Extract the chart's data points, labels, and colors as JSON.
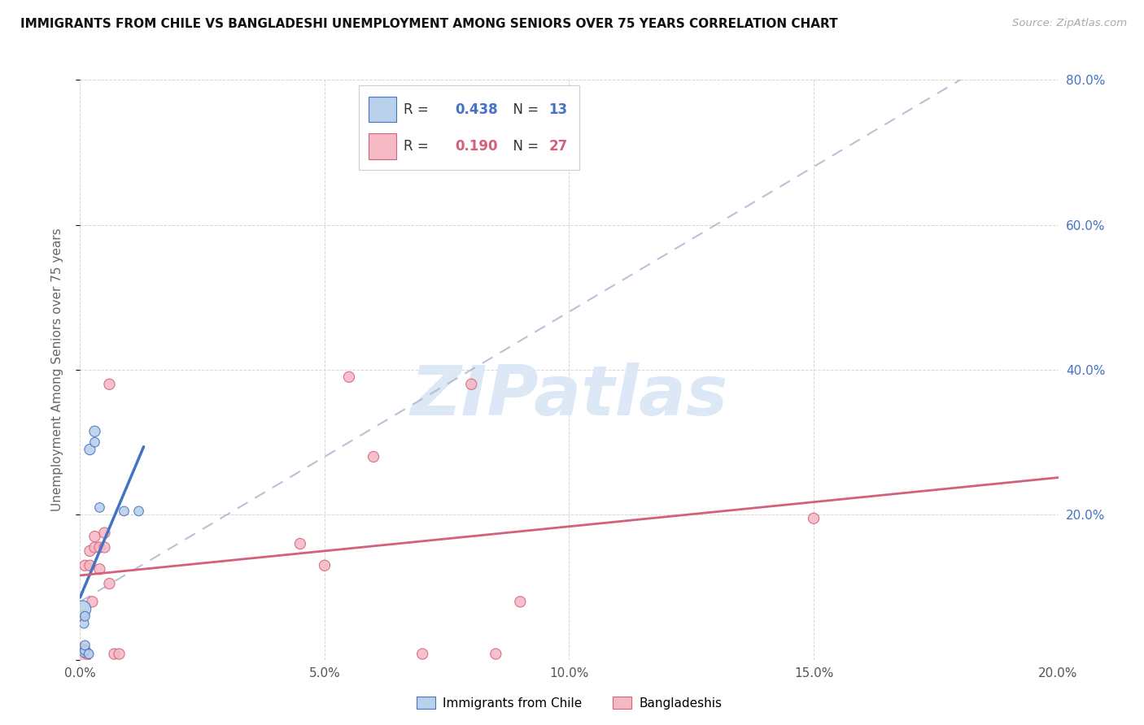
{
  "title": "IMMIGRANTS FROM CHILE VS BANGLADESHI UNEMPLOYMENT AMONG SENIORS OVER 75 YEARS CORRELATION CHART",
  "source": "Source: ZipAtlas.com",
  "ylabel": "Unemployment Among Seniors over 75 years",
  "xlim": [
    -0.001,
    0.205
  ],
  "ylim": [
    -0.04,
    0.84
  ],
  "plot_xlim": [
    0.0,
    0.2
  ],
  "plot_ylim": [
    0.0,
    0.8
  ],
  "xticks": [
    0.0,
    0.05,
    0.1,
    0.15,
    0.2
  ],
  "xticklabels": [
    "0.0%",
    "5.0%",
    "10.0%",
    "15.0%",
    "20.0%"
  ],
  "yticks": [
    0.0,
    0.2,
    0.4,
    0.6,
    0.8
  ],
  "right_yticklabels": [
    "",
    "20.0%",
    "40.0%",
    "60.0%",
    "80.0%"
  ],
  "chile_R": "0.438",
  "chile_N": "13",
  "bangladesh_R": "0.190",
  "bangladesh_N": "27",
  "chile_fill": "#b8d0ea",
  "chile_edge": "#4472c4",
  "bangladesh_fill": "#f5b8c5",
  "bangladesh_edge": "#d4607a",
  "chile_pts": [
    [
      0.0005,
      0.07
    ],
    [
      0.0008,
      0.01
    ],
    [
      0.0008,
      0.05
    ],
    [
      0.001,
      0.013
    ],
    [
      0.001,
      0.02
    ],
    [
      0.001,
      0.06
    ],
    [
      0.0018,
      0.008
    ],
    [
      0.002,
      0.29
    ],
    [
      0.003,
      0.315
    ],
    [
      0.003,
      0.3
    ],
    [
      0.004,
      0.21
    ],
    [
      0.009,
      0.205
    ],
    [
      0.012,
      0.205
    ]
  ],
  "chile_sizes": [
    220,
    70,
    70,
    70,
    70,
    70,
    70,
    90,
    90,
    70,
    70,
    70,
    70
  ],
  "bangladesh_pts": [
    [
      0.0003,
      0.008
    ],
    [
      0.0005,
      0.06
    ],
    [
      0.001,
      0.012
    ],
    [
      0.001,
      0.13
    ],
    [
      0.0015,
      0.008
    ],
    [
      0.002,
      0.13
    ],
    [
      0.002,
      0.15
    ],
    [
      0.0025,
      0.08
    ],
    [
      0.003,
      0.155
    ],
    [
      0.003,
      0.17
    ],
    [
      0.004,
      0.155
    ],
    [
      0.004,
      0.125
    ],
    [
      0.005,
      0.155
    ],
    [
      0.005,
      0.175
    ],
    [
      0.006,
      0.105
    ],
    [
      0.006,
      0.38
    ],
    [
      0.007,
      0.008
    ],
    [
      0.008,
      0.008
    ],
    [
      0.045,
      0.16
    ],
    [
      0.05,
      0.13
    ],
    [
      0.055,
      0.39
    ],
    [
      0.06,
      0.28
    ],
    [
      0.07,
      0.008
    ],
    [
      0.08,
      0.38
    ],
    [
      0.085,
      0.008
    ],
    [
      0.09,
      0.08
    ],
    [
      0.15,
      0.195
    ]
  ],
  "bangladesh_sizes": [
    320,
    90,
    90,
    90,
    90,
    90,
    90,
    90,
    90,
    90,
    90,
    90,
    90,
    90,
    90,
    90,
    90,
    90,
    90,
    90,
    90,
    90,
    90,
    90,
    90,
    90,
    90
  ],
  "dashed_line": [
    [
      0.0,
      0.08
    ],
    [
      0.2,
      0.88
    ]
  ],
  "watermark_text": "ZIPatlas",
  "watermark_color": "#dce8f5"
}
